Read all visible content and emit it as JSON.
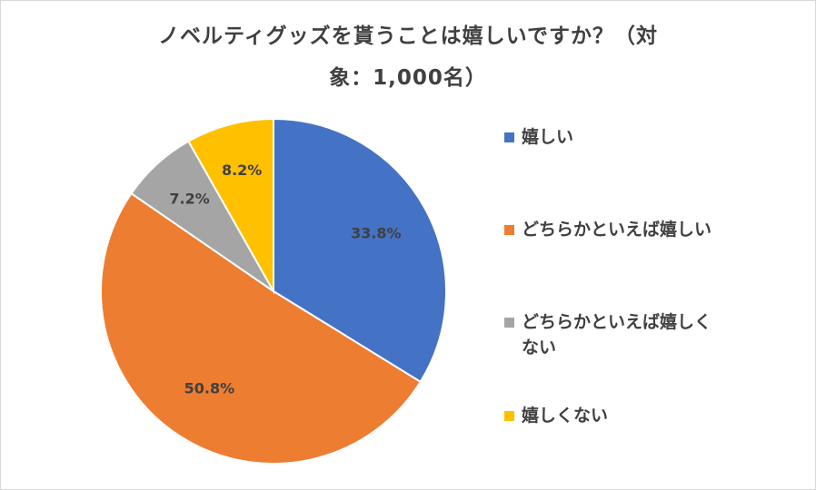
{
  "chart_data": {
    "type": "pie",
    "title_line1": "ノベルティグッズを貰うことは嬉しいですか？（対",
    "title_line2": "象：1,000名）",
    "slices": [
      {
        "label": "嬉しい",
        "value": 33.8,
        "value_label": "33.8%",
        "color": "#4472C4"
      },
      {
        "label": "どちらかといえば嬉しい",
        "value": 50.8,
        "value_label": "50.8%",
        "color": "#ED7D31"
      },
      {
        "label": "どちらかといえば嬉しくない",
        "value": 7.2,
        "value_label": "7.2%",
        "color": "#A5A5A5"
      },
      {
        "label": "嬉しくない",
        "value": 8.2,
        "value_label": "8.2%",
        "color": "#FFC000"
      }
    ],
    "legend": {
      "position": "right",
      "items": [
        {
          "label": "嬉しい",
          "color": "#4472C4"
        },
        {
          "label": "どちらかといえば嬉しい",
          "color": "#ED7D31"
        },
        {
          "label": "どちらかといえば嬉しく\nない",
          "line1": "どちらかといえば嬉しく",
          "line2": "ない",
          "color": "#A5A5A5"
        },
        {
          "label": "嬉しくない",
          "color": "#FFC000"
        }
      ]
    }
  }
}
